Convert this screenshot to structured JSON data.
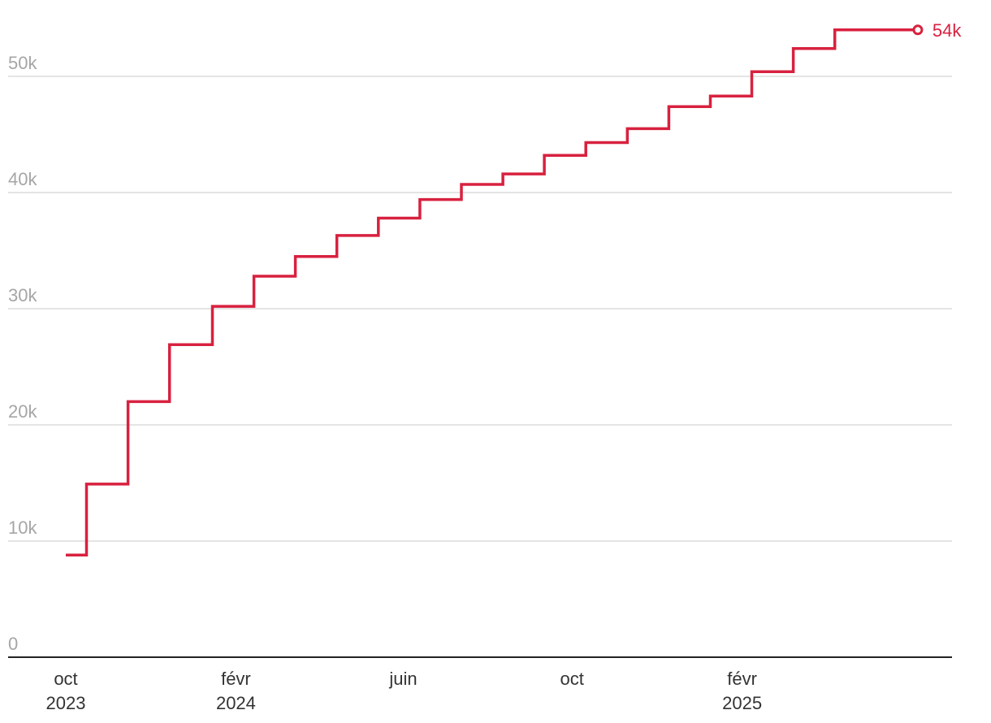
{
  "chart_data": {
    "type": "line",
    "step": true,
    "title": "",
    "xlabel": "",
    "ylabel": "",
    "colors": {
      "series": "#d8213f",
      "grid": "#dcdcdc",
      "tick_text": "#a6a6a6",
      "axis_text": "#333333"
    },
    "ylim": [
      0,
      54000
    ],
    "y_ticks": [
      {
        "value": 0,
        "label": "0"
      },
      {
        "value": 10000,
        "label": "10k"
      },
      {
        "value": 20000,
        "label": "20k"
      },
      {
        "value": 30000,
        "label": "30k"
      },
      {
        "value": 40000,
        "label": "40k"
      },
      {
        "value": 50000,
        "label": "50k"
      }
    ],
    "xlim": [
      "2023-10-01",
      "2025-06-21"
    ],
    "x_ticks": [
      {
        "date": "2023-10-01",
        "month": "oct",
        "year": "2023"
      },
      {
        "date": "2024-02-01",
        "month": "févr",
        "year": "2024"
      },
      {
        "date": "2024-06-01",
        "month": "juin",
        "year": ""
      },
      {
        "date": "2024-10-01",
        "month": "oct",
        "year": ""
      },
      {
        "date": "2025-02-01",
        "month": "févr",
        "year": "2025"
      }
    ],
    "series": [
      {
        "x": [
          "2023-10-01",
          "2023-10-16",
          "2023-11-15",
          "2023-12-15",
          "2024-01-15",
          "2024-02-14",
          "2024-03-15",
          "2024-04-14",
          "2024-05-14",
          "2024-06-13",
          "2024-07-13",
          "2024-08-12",
          "2024-09-11",
          "2024-10-11",
          "2024-11-10",
          "2024-12-10",
          "2025-01-09",
          "2025-02-08",
          "2025-03-10",
          "2025-04-09",
          "2025-05-09",
          "2025-06-08"
        ],
        "values": [
          8800,
          14900,
          22000,
          26900,
          30200,
          32800,
          34500,
          36300,
          37800,
          39400,
          40700,
          41600,
          43200,
          44300,
          45500,
          47400,
          48300,
          50400,
          52400,
          54000,
          54000,
          54000
        ],
        "end_value": 54000,
        "end_label": "54k"
      }
    ]
  }
}
